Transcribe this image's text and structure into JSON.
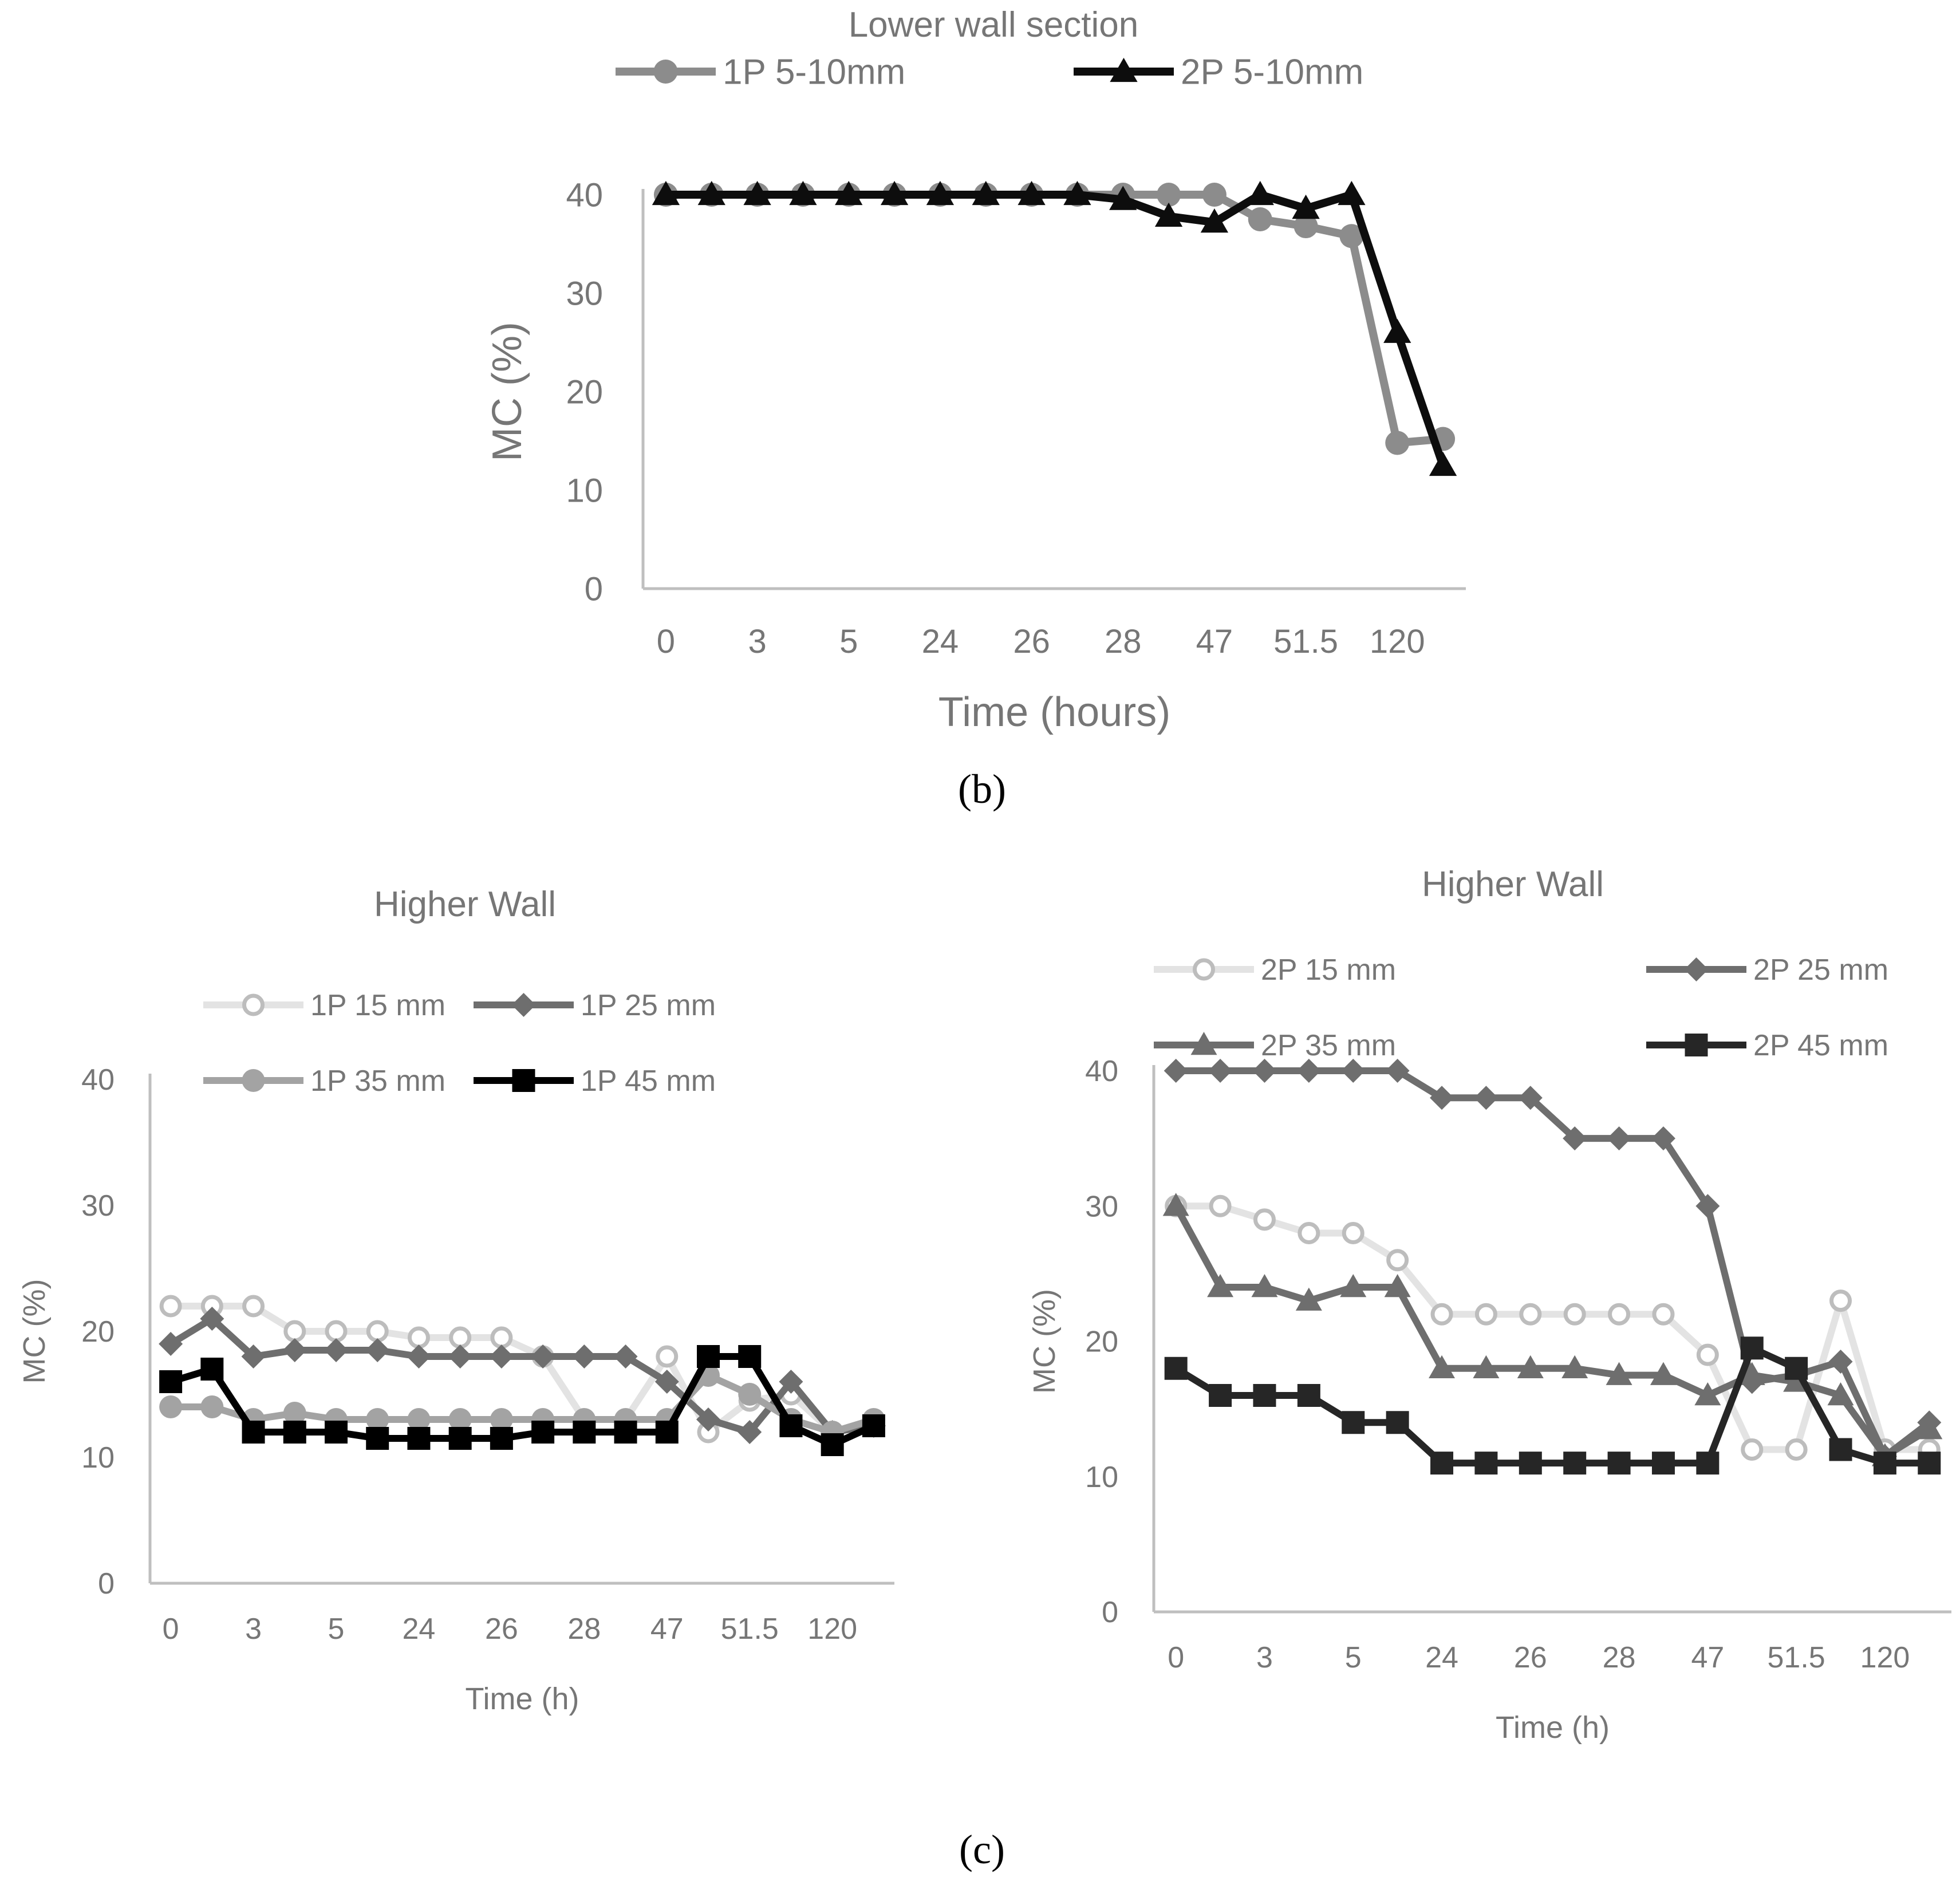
{
  "panels": {
    "b_label": "(b)",
    "c_label": "(c)"
  },
  "chart_data": [
    {
      "id": "b",
      "type": "line",
      "title": "Lower wall section",
      "xlabel": "Time (hours)",
      "ylabel": "MC (%)",
      "ylim": [
        0,
        40
      ],
      "yticks": [
        "0",
        "10",
        "20",
        "30",
        "40"
      ],
      "x": [
        "0",
        "",
        "3",
        "",
        "5",
        "",
        "24",
        "",
        "26",
        "",
        "28",
        "",
        "47",
        "",
        "51.5",
        "",
        "120",
        ""
      ],
      "grid": false,
      "legend_position": "top",
      "series": [
        {
          "name": "1P 5-10mm",
          "color": "#8c8c8c",
          "marker": "circle",
          "values": [
            40,
            40,
            40,
            40,
            40,
            40,
            40,
            40,
            40,
            40,
            40,
            40,
            40,
            37.5,
            36.8,
            35.8,
            14.8,
            15.2
          ]
        },
        {
          "name": "2P 5-10mm",
          "color": "#0d0d0d",
          "marker": "triangle",
          "values": [
            40,
            40,
            40,
            40,
            40,
            40,
            40,
            40,
            40,
            40,
            39.5,
            37.8,
            37.2,
            40,
            38.6,
            40,
            26,
            12.5
          ]
        }
      ]
    },
    {
      "id": "c-left",
      "type": "line",
      "title": "Higher Wall",
      "xlabel": "Time (h)",
      "ylabel": "MC (%)",
      "ylim": [
        0,
        40
      ],
      "yticks": [
        "0",
        "10",
        "20",
        "30",
        "40"
      ],
      "x": [
        "0",
        "",
        "3",
        "",
        "5",
        "",
        "24",
        "",
        "26",
        "",
        "28",
        "",
        "47",
        "",
        "51.5",
        "",
        "120",
        ""
      ],
      "grid": false,
      "legend_position": "top",
      "series": [
        {
          "name": "1P 15 mm",
          "color": "#e3e3e3",
          "marker": "circle-open",
          "values": [
            22,
            22,
            22,
            20,
            20,
            20,
            19.5,
            19.5,
            19.5,
            18,
            13,
            13,
            18,
            12,
            14.5,
            15,
            12,
            13
          ]
        },
        {
          "name": "1P 25 mm",
          "color": "#6e6e6e",
          "marker": "diamond",
          "values": [
            19,
            21,
            18,
            18.5,
            18.5,
            18.5,
            18,
            18,
            18,
            18,
            18,
            18,
            16,
            13,
            12,
            16,
            12,
            12.5
          ]
        },
        {
          "name": "1P 35 mm",
          "color": "#a3a3a3",
          "marker": "circle",
          "values": [
            14,
            14,
            13,
            13.5,
            13,
            13,
            13,
            13,
            13,
            13,
            13,
            13,
            13,
            16.5,
            15,
            13,
            12,
            13
          ]
        },
        {
          "name": "1P 45 mm",
          "color": "#000000",
          "marker": "square",
          "values": [
            16,
            17,
            12,
            12,
            12,
            11.5,
            11.5,
            11.5,
            11.5,
            12,
            12,
            12,
            12,
            18,
            18,
            12.5,
            11,
            12.5
          ]
        }
      ]
    },
    {
      "id": "c-right",
      "type": "line",
      "title": "Higher Wall",
      "xlabel": "Time (h)",
      "ylabel": "MC (%)",
      "ylim": [
        0,
        40
      ],
      "yticks": [
        "0",
        "10",
        "20",
        "30",
        "40"
      ],
      "x": [
        "0",
        "",
        "3",
        "",
        "5",
        "",
        "24",
        "",
        "26",
        "",
        "28",
        "",
        "47",
        "",
        "51.5",
        "",
        "120",
        ""
      ],
      "grid": false,
      "legend_position": "top",
      "series": [
        {
          "name": "2P 15 mm",
          "color": "#e3e3e3",
          "marker": "circle-open",
          "values": [
            30,
            30,
            29,
            28,
            28,
            26,
            22,
            22,
            22,
            22,
            22,
            22,
            19,
            12,
            12,
            23,
            12,
            12
          ]
        },
        {
          "name": "2P 25 mm",
          "color": "#6e6e6e",
          "marker": "diamond",
          "values": [
            40,
            40,
            40,
            40,
            40,
            40,
            38,
            38,
            38,
            35,
            35,
            35,
            30,
            17,
            17.5,
            18.5,
            11.5,
            14
          ]
        },
        {
          "name": "2P 35 mm",
          "color": "#6e6e6e",
          "marker": "triangle",
          "values": [
            30,
            24,
            24,
            23,
            24,
            24,
            18,
            18,
            18,
            18,
            17.5,
            17.5,
            16,
            17.5,
            17,
            16,
            11.5,
            13.5
          ]
        },
        {
          "name": "2P 45 mm",
          "color": "#262626",
          "marker": "square",
          "values": [
            18,
            16,
            16,
            16,
            14,
            14,
            11,
            11,
            11,
            11,
            11,
            11,
            11,
            19.5,
            18,
            12,
            11,
            11
          ]
        }
      ]
    }
  ]
}
